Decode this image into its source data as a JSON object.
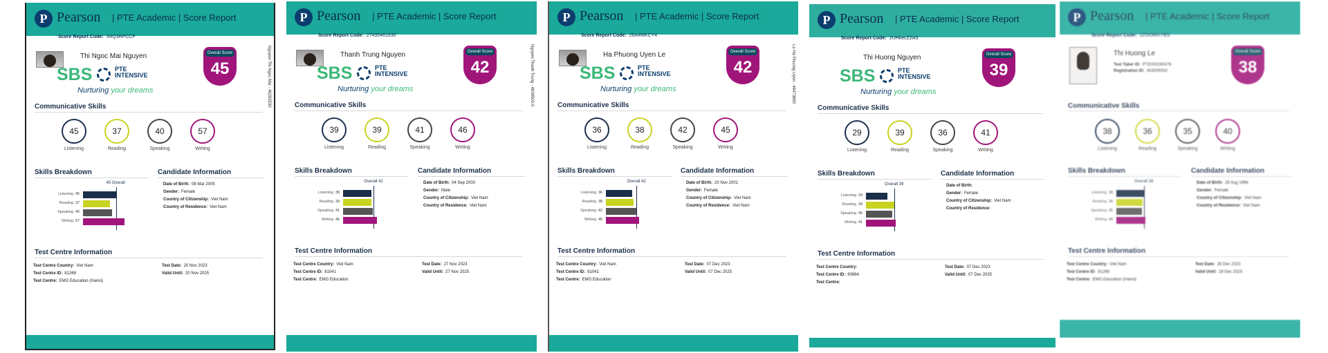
{
  "brand": "Pearson",
  "report_title": "| PTE Academic | Score Report",
  "code_label": "Score Report Code:",
  "overall_label": "Overall Score",
  "sections": {
    "communicative": "Communicative Skills",
    "breakdown": "Skills Breakdown",
    "candidate": "Candidate Information",
    "test_centre": "Test Centre Information"
  },
  "skill_labels": [
    "Listening",
    "Reading",
    "Speaking",
    "Writing"
  ],
  "sbs": {
    "word": "SBS",
    "pte1": "PTE",
    "pte2": "INTENSIVE",
    "slogan1": "Nurturing",
    "slogan2": "your dreams"
  },
  "labels": {
    "dob": "Date of Birth:",
    "gender": "Gender:",
    "citizenship": "Country of Citizenship:",
    "residence": "Country of Residence:",
    "tc_country": "Test Centre Country:",
    "tc_id": "Test Centre ID:",
    "tc_name": "Test Centre:",
    "test_date": "Test Date:",
    "valid_until": "Valid Until:",
    "taker_id": "Test Taker ID:",
    "reg_id": "Registration ID:"
  },
  "colors": {
    "teal": "#1aa99a",
    "navy": "#1b2f4a",
    "lime": "#c9d321",
    "magenta": "#a0157a",
    "green": "#3cb878"
  },
  "reports": [
    {
      "name": "Thi Ngoc Mai Nguyen",
      "code": "S4Q3RPCCF",
      "side": "Nguyen Thi Ngoc Mai - 46283530",
      "overall": 45,
      "overall_text": "45 Overall",
      "scores": [
        45,
        37,
        40,
        57
      ],
      "dob": "08 Mar 2005",
      "gender": "Female",
      "citizenship": "Viet Nam",
      "residence": "Viet Nam",
      "tc_country": "Viet Nam",
      "tc_id": "81268",
      "tc_name": "EMG Education (Hanoi)",
      "test_date": "20 Nov 2023",
      "valid_until": "20 Nov 2025",
      "show_sbs": true,
      "show_name": true
    },
    {
      "name": "Thanh Trung Nguyen",
      "code": "27435461630",
      "side": "Nguyen Thanh Trung - 4638500-0",
      "overall": 42,
      "overall_text": "Overall 42",
      "scores": [
        39,
        39,
        41,
        46
      ],
      "dob": "04 Sep 2000",
      "gender": "Male",
      "citizenship": "Viet Nam",
      "residence": "Viet Nam",
      "tc_country": "Viet Nam",
      "tc_id": "81041",
      "tc_name": "EMG Education",
      "test_date": "27 Nov 2023",
      "valid_until": "27 Nov 2025",
      "show_sbs": true,
      "show_name": true
    },
    {
      "name": "Ha Phuong Uyen Le",
      "code": "26A4MKCY4",
      "side": "Le Ha Phuong Uyen - 46473860",
      "overall": 42,
      "overall_text": "Overall 42",
      "scores": [
        36,
        38,
        42,
        45
      ],
      "dob": "20 Nov 2001",
      "gender": "Female",
      "citizenship": "Viet Nam",
      "residence": "Viet Nam",
      "tc_country": "Viet Nam",
      "tc_id": "81041",
      "tc_name": "EMG Education",
      "test_date": "07 Dec 2023",
      "valid_until": "07 Dec 2025",
      "show_sbs": true,
      "show_name": true
    },
    {
      "name": "Thi Huong Nguyen",
      "code": "2UHkecZ2A5",
      "side": "",
      "overall": 39,
      "overall_text": "Overall 39",
      "scores": [
        29,
        39,
        36,
        41
      ],
      "dob": "",
      "gender": "Female",
      "citizenship": "Viet Nam",
      "residence": "",
      "tc_country": "",
      "tc_id": "90884",
      "tc_name": "",
      "test_date": "07 Dec 2023",
      "valid_until": "07 Dec 2025",
      "show_sbs": true,
      "show_name": true
    },
    {
      "name": "Thi Huong Le",
      "code": "2ZOOMXYBS",
      "side": "",
      "overall": 38,
      "overall_text": "Overall 38",
      "scores": [
        38,
        36,
        35,
        40
      ],
      "dob": "28 Aug 1994",
      "gender": "Female",
      "citizenship": "Viet Nam",
      "residence": "Viet Nam",
      "tc_country": "Viet Nam",
      "tc_id": "81268",
      "tc_name": "EMG Education (Hanoi)",
      "test_date": "28 Dec 2023",
      "valid_until": "28 Dec 2025",
      "taker_id": "PTE000290476",
      "reg_id": "463059033",
      "show_sbs": false,
      "show_name": true
    }
  ]
}
